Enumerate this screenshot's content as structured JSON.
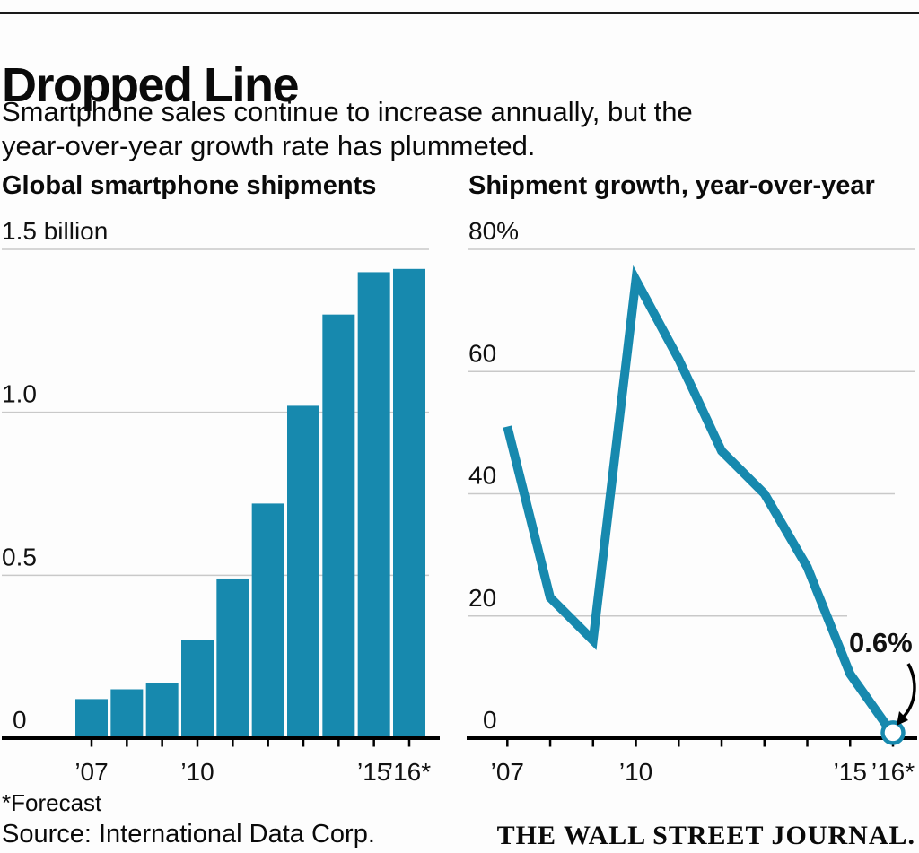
{
  "page": {
    "title": "Dropped Line",
    "subtitle_line1": "Smartphone sales continue to increase annually, but the",
    "subtitle_line2": "year-over-year growth rate has plummeted.",
    "footnote": "*Forecast",
    "source": "Source: International Data Corp.",
    "credit": "THE WALL STREET JOURNAL."
  },
  "colors": {
    "accent": "#1789ae",
    "grid": "#c9c9c9",
    "axis": "#000000",
    "marker_fill": "#ffffff"
  },
  "chart_data": [
    {
      "type": "bar",
      "title": "Global smartphone shipments",
      "unit": "billions of units",
      "categories": [
        "’07",
        "’08",
        "’09",
        "’10",
        "’11",
        "’12",
        "’13",
        "’14",
        "’15",
        "’16*"
      ],
      "values": [
        0.12,
        0.15,
        0.17,
        0.3,
        0.49,
        0.72,
        1.02,
        1.3,
        1.43,
        1.44
      ],
      "ylim": [
        0,
        1.5
      ],
      "ytick_values": [
        0,
        0.5,
        1.0,
        1.5
      ],
      "ytick_labels": [
        "0",
        "0.5",
        "1.0",
        "1.5 billion"
      ],
      "xticks_shown": [
        "’07",
        "’10",
        "’15",
        "’16*"
      ],
      "grid": true
    },
    {
      "type": "line",
      "title": "Shipment growth, year-over-year",
      "unit": "percent",
      "categories": [
        "’07",
        "’08",
        "’09",
        "’10",
        "’11",
        "’12",
        "’13",
        "’14",
        "’15",
        "’16*"
      ],
      "values": [
        51,
        23,
        16,
        75,
        62,
        47,
        40,
        28,
        10.5,
        0.6
      ],
      "ylim": [
        0,
        80
      ],
      "ytick_values": [
        0,
        20,
        40,
        60,
        80
      ],
      "ytick_labels": [
        "0",
        "20",
        "40",
        "60",
        "80%"
      ],
      "xticks_shown": [
        "’07",
        "’10",
        "’15",
        "’16*"
      ],
      "annotation": {
        "text": "0.6%",
        "marker": "open-circle",
        "year": "’16*"
      },
      "grid": true
    }
  ]
}
